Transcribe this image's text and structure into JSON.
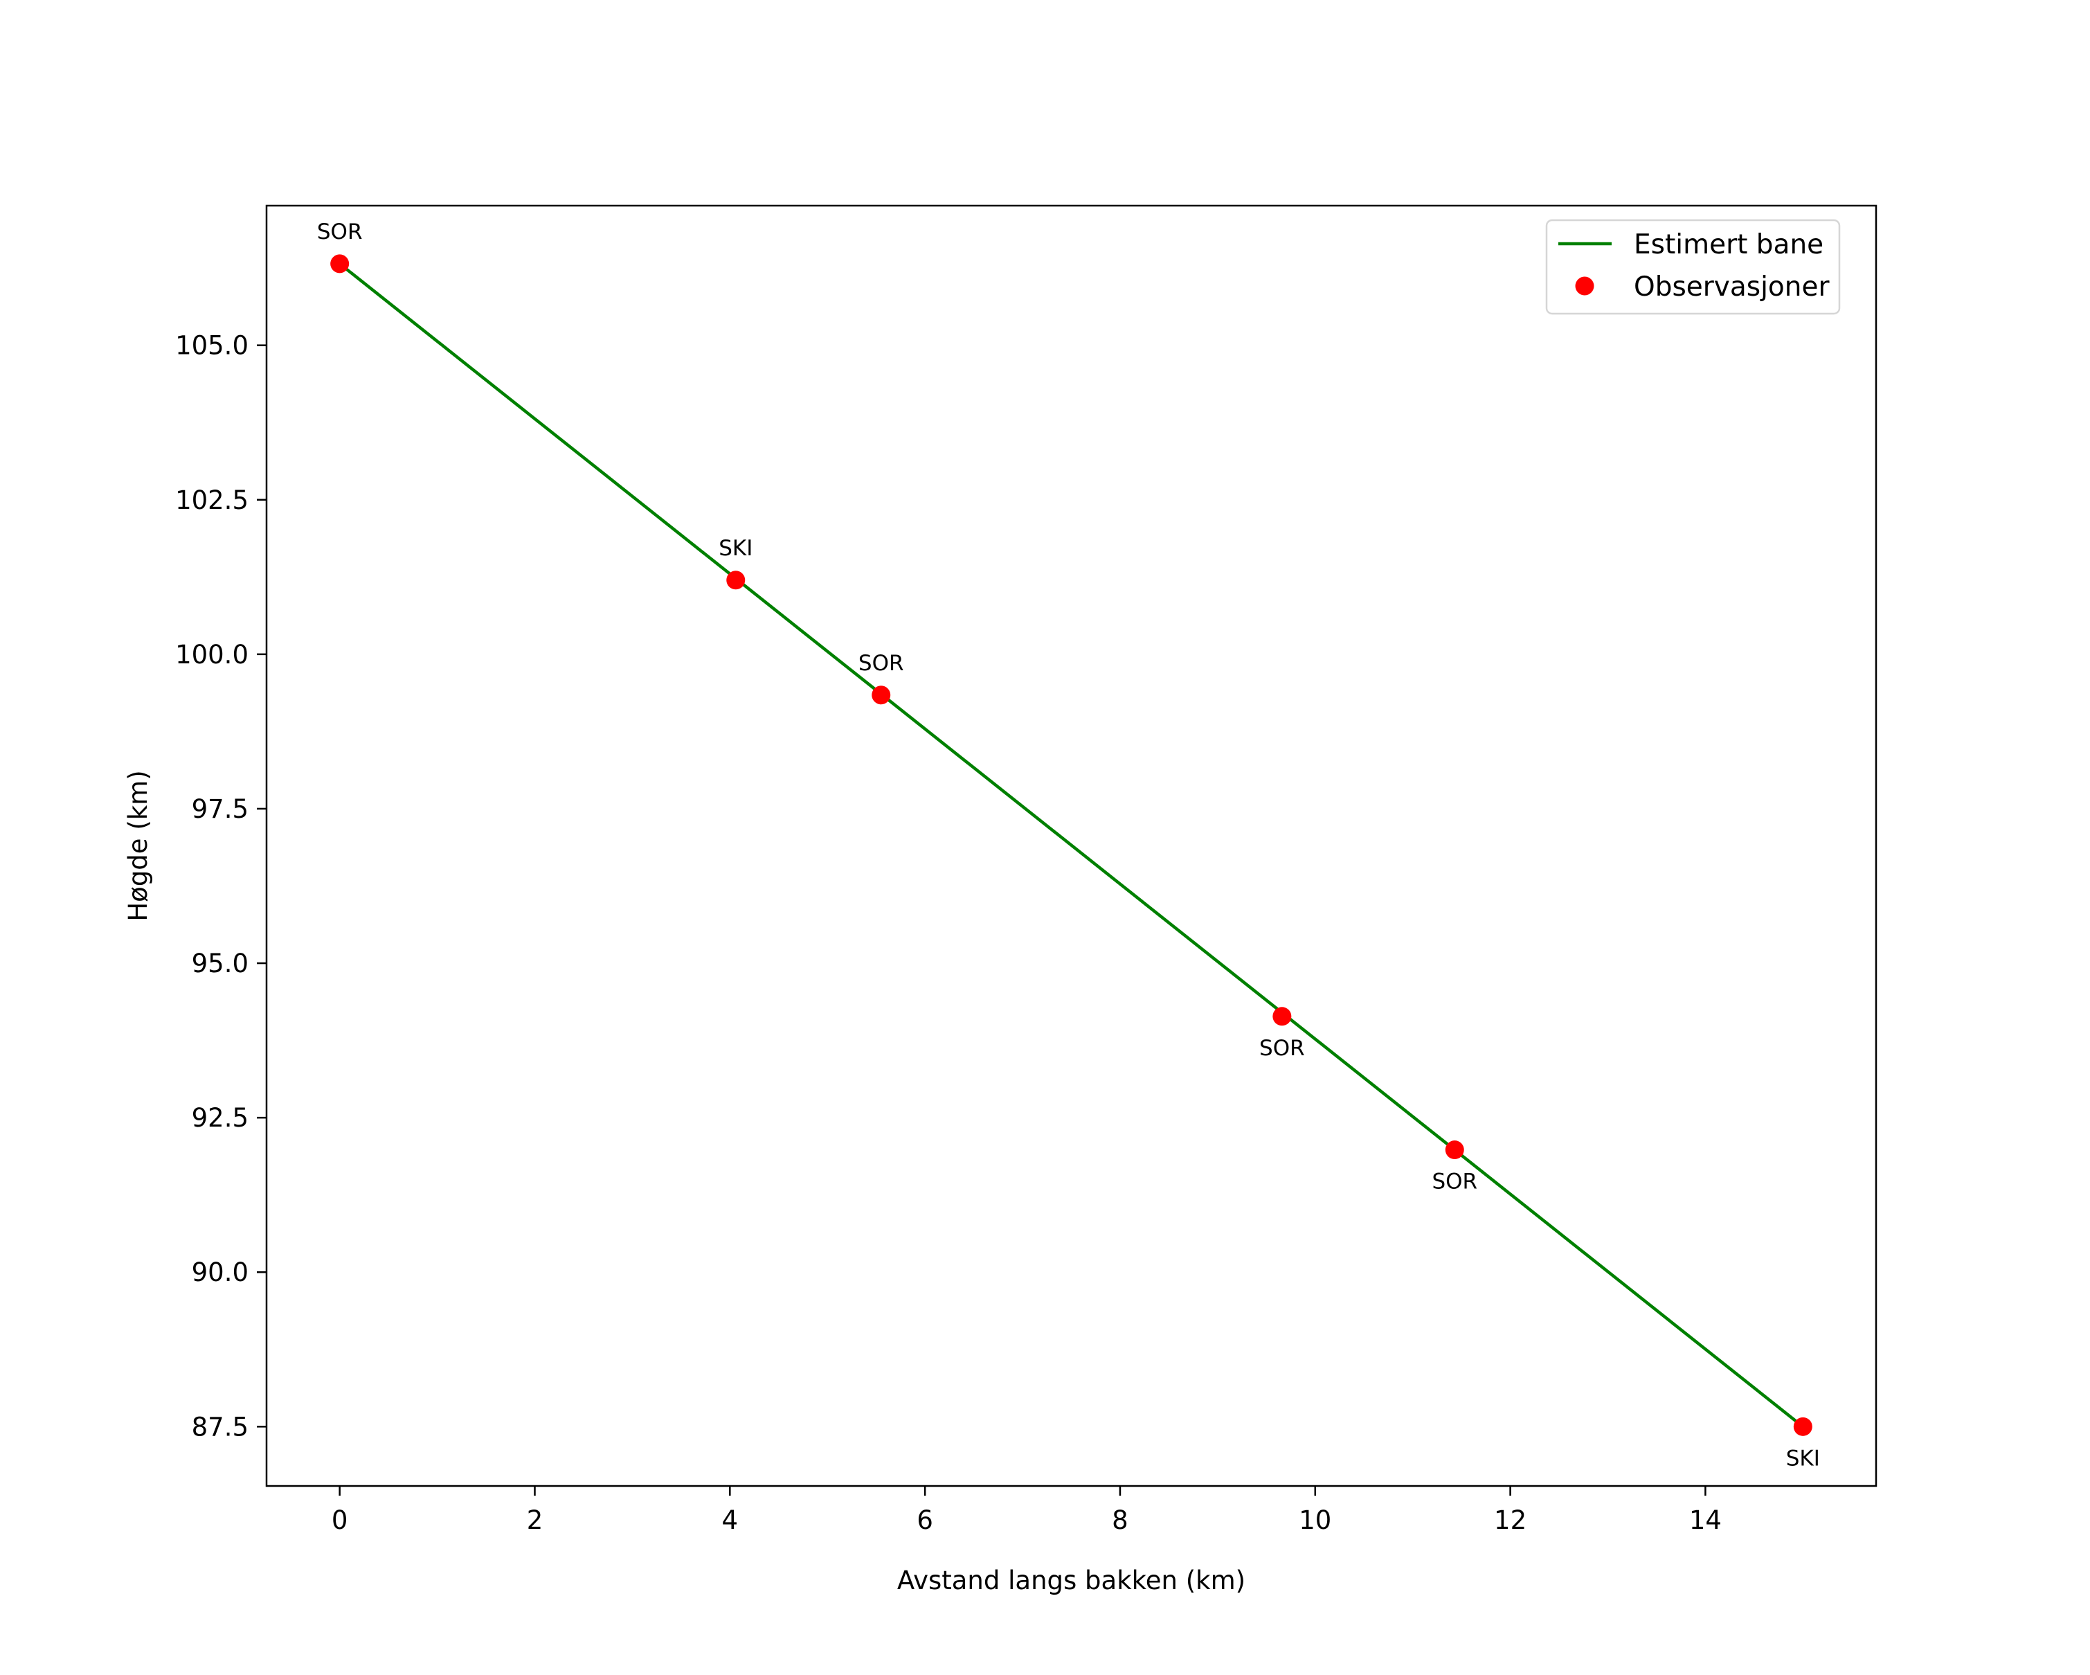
{
  "chart_data": {
    "type": "line",
    "title": "",
    "xlabel": "Avstand langs bakken (km)",
    "ylabel": "Høgde (km)",
    "xlim": [
      -0.75,
      15.75
    ],
    "ylim": [
      86.54,
      107.26
    ],
    "xticks": [
      0,
      2,
      4,
      6,
      8,
      10,
      12,
      14
    ],
    "xtick_labels": [
      "0",
      "2",
      "4",
      "6",
      "8",
      "10",
      "12",
      "14"
    ],
    "yticks": [
      87.5,
      90.0,
      92.5,
      95.0,
      97.5,
      100.0,
      102.5,
      105.0
    ],
    "ytick_labels": [
      "87.5",
      "90.0",
      "92.5",
      "95.0",
      "97.5",
      "100.0",
      "102.5",
      "105.0"
    ],
    "grid": false,
    "legend_position": "upper right",
    "series": [
      {
        "name": "Estimert bane",
        "type": "line",
        "color": "#008000",
        "x": [
          0.0,
          15.0
        ],
        "y": [
          106.32,
          87.5
        ]
      },
      {
        "name": "Observasjoner",
        "type": "scatter",
        "color": "#ff0000",
        "x": [
          0.0,
          4.06,
          5.55,
          9.66,
          11.43,
          15.0
        ],
        "y": [
          106.32,
          101.2,
          99.34,
          94.14,
          91.98,
          87.5
        ],
        "labels": [
          "SOR",
          "SKI",
          "SOR",
          "SOR",
          "SOR",
          "SKI"
        ],
        "label_positions": [
          "above",
          "above",
          "above",
          "below",
          "below",
          "below"
        ]
      }
    ]
  }
}
